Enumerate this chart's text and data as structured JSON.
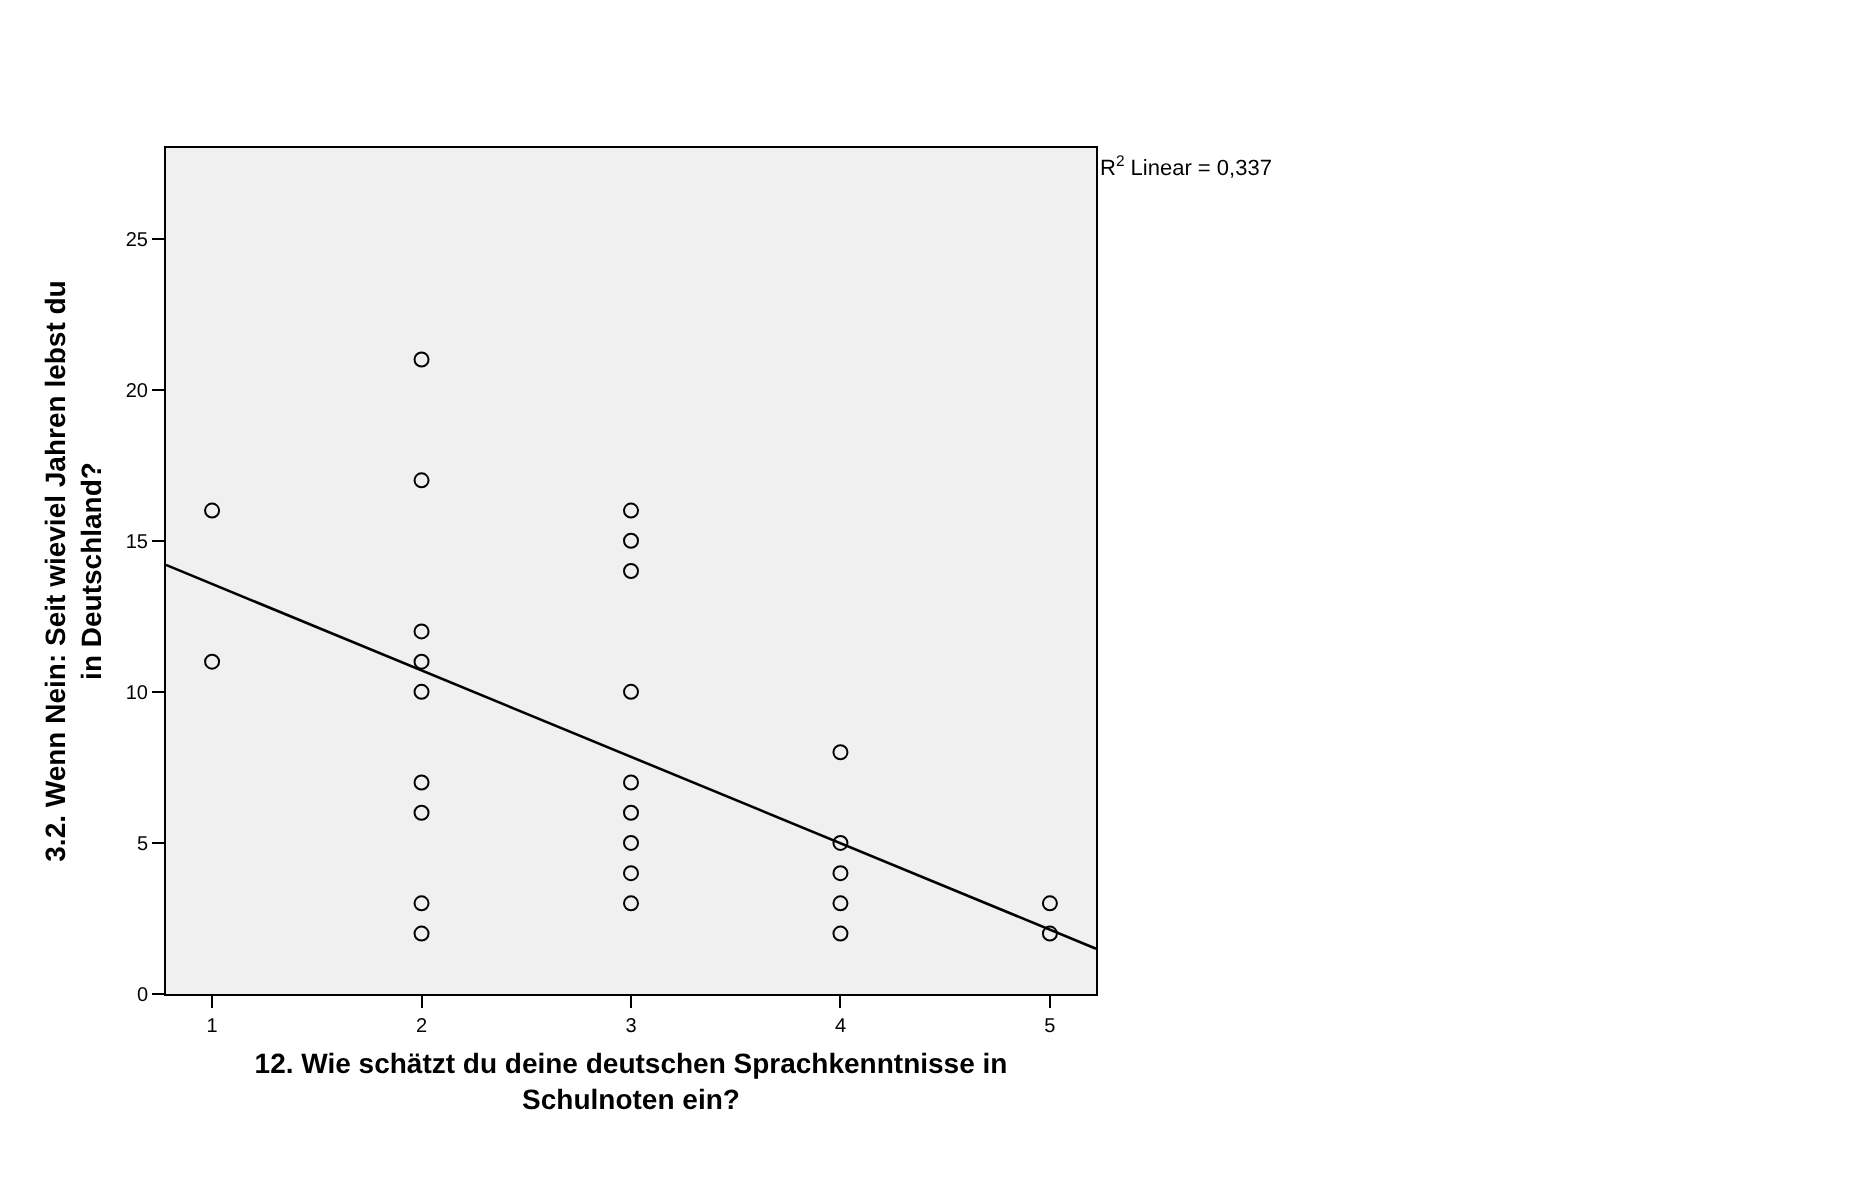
{
  "chart_data": {
    "type": "scatter",
    "xlabel": "12. Wie schätzt du deine deutschen Sprachkenntnisse in Schulnoten ein?",
    "ylabel": "3.2. Wenn Nein: Seit wieviel Jahren lebst du in Deutschland?",
    "x": [
      1,
      1,
      2,
      2,
      2,
      2,
      2,
      2,
      2,
      2,
      2,
      3,
      3,
      3,
      3,
      3,
      3,
      3,
      3,
      3,
      4,
      4,
      4,
      4,
      4,
      5,
      5
    ],
    "series": [
      {
        "color": "#000000",
        "marker": "circle",
        "values": [
          16,
          11,
          21,
          17,
          12,
          11,
          10,
          7,
          6,
          3,
          2,
          16,
          15,
          14,
          10,
          7,
          6,
          5,
          4,
          3,
          8,
          5,
          4,
          3,
          2,
          3,
          2
        ]
      },
      {
        "type": "line",
        "marker": "none",
        "color": "#000000",
        "x": [
          0.78,
          5.22
        ],
        "values": [
          14.2,
          1.5
        ]
      }
    ],
    "annotations": [
      "R$^{2}$ Linear = 0,337"
    ],
    "xlim": [
      0.78,
      5.22
    ],
    "xticks": [
      1,
      2,
      3,
      4,
      5
    ],
    "ylim": [
      0,
      28
    ],
    "yticks": [
      0,
      5,
      10,
      15,
      20,
      25
    ],
    "grid": false,
    "legend": false,
    "line_style": "solid"
  }
}
